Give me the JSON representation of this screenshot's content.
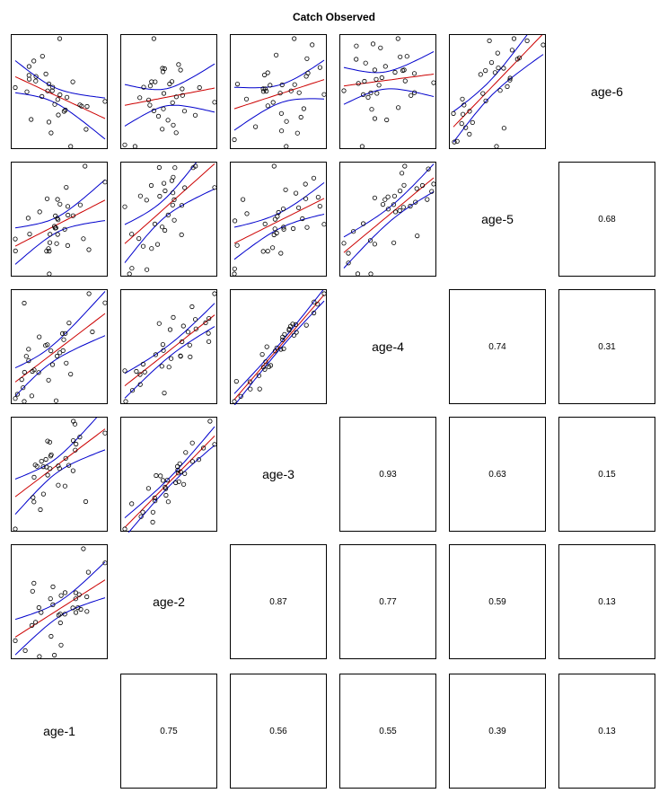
{
  "chart_data": {
    "type": "scatter",
    "title": "Catch Observed",
    "layout": "pairs-matrix",
    "variables": [
      "age-1",
      "age-2",
      "age-3",
      "age-4",
      "age-5",
      "age-6"
    ],
    "correlations": [
      {
        "row": "age-2",
        "col": "age-1",
        "value": "0.75"
      },
      {
        "row": "age-3",
        "col": "age-1",
        "value": "0.56"
      },
      {
        "row": "age-3",
        "col": "age-2",
        "value": "0.87"
      },
      {
        "row": "age-4",
        "col": "age-1",
        "value": "0.55"
      },
      {
        "row": "age-4",
        "col": "age-2",
        "value": "0.77"
      },
      {
        "row": "age-4",
        "col": "age-3",
        "value": "0.93"
      },
      {
        "row": "age-5",
        "col": "age-1",
        "value": "0.39"
      },
      {
        "row": "age-5",
        "col": "age-2",
        "value": "0.59"
      },
      {
        "row": "age-5",
        "col": "age-3",
        "value": "0.63"
      },
      {
        "row": "age-5",
        "col": "age-4",
        "value": "0.74"
      },
      {
        "row": "age-6",
        "col": "age-1",
        "value": "0.13"
      },
      {
        "row": "age-6",
        "col": "age-2",
        "value": "0.13"
      },
      {
        "row": "age-6",
        "col": "age-3",
        "value": "0.15"
      },
      {
        "row": "age-6",
        "col": "age-4",
        "value": "0.31"
      },
      {
        "row": "age-6",
        "col": "age-5",
        "value": "0.68"
      }
    ],
    "point_style": "open-circle",
    "fit_line_color": "#cc0000",
    "confidence_band_color": "#0000cc",
    "grid": false
  }
}
